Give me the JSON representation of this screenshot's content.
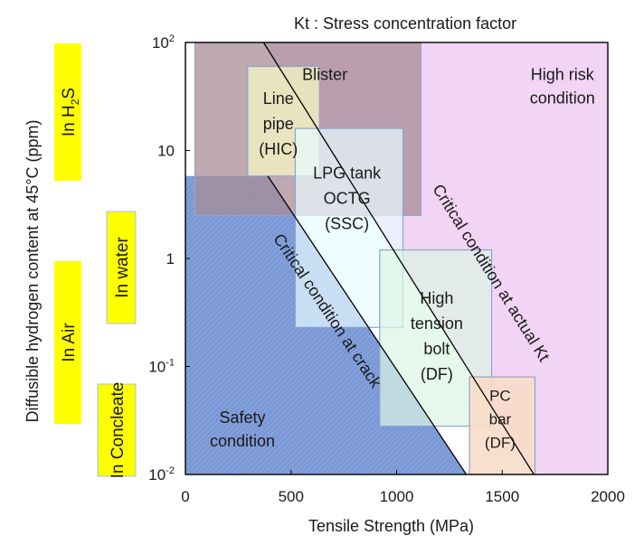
{
  "chart_data": {
    "type": "region-map",
    "title": "Kt : Stress concentration factor",
    "xlabel": "Tensile Strength (MPa)",
    "ylabel": "Diffusible hydrogen content at 45°C (ppm)",
    "xlim": [
      0,
      2000
    ],
    "ylim": [
      0.01,
      100
    ],
    "yscale": "log",
    "xticks": [
      {
        "value": 0,
        "label": "0"
      },
      {
        "value": 500,
        "label": "500"
      },
      {
        "value": 1000,
        "label": "1000"
      },
      {
        "value": 1500,
        "label": "1500"
      },
      {
        "value": 2000,
        "label": "2000"
      }
    ],
    "yticks": [
      {
        "value": 100,
        "base": "10",
        "exp": "2"
      },
      {
        "value": 10,
        "base": "10",
        "exp": ""
      },
      {
        "value": 1,
        "base": "1",
        "exp": ""
      },
      {
        "value": 0.1,
        "base": "10",
        "exp": "-1"
      },
      {
        "value": 0.01,
        "base": "10",
        "exp": "-2"
      }
    ],
    "regions": [
      {
        "name": "high-risk-region",
        "color": "#f2d4f4",
        "polygon": [
          [
            370,
            100
          ],
          [
            2000,
            100
          ],
          [
            2000,
            0.01
          ],
          [
            1650,
            0.01
          ]
        ]
      },
      {
        "name": "safety-region",
        "color": "#7a98d6",
        "polygon": [
          [
            0,
            5.8
          ],
          [
            390,
            5.8
          ],
          [
            1330,
            0.01
          ],
          [
            0,
            0.01
          ]
        ]
      }
    ],
    "lines": [
      {
        "name": "critical-line-actual-kt",
        "from": [
          370,
          100
        ],
        "to": [
          1650,
          0.01
        ]
      },
      {
        "name": "critical-line-crack",
        "from": [
          390,
          5.8
        ],
        "to": [
          1330,
          0.01
        ]
      }
    ],
    "boxes": [
      {
        "name": "blister-box",
        "label_key": "blister",
        "x": [
          45,
          1115
        ],
        "y": [
          2.5,
          100
        ],
        "fill": "#a88c96",
        "opacity": 0.75
      },
      {
        "name": "line-pipe-box",
        "label_key": "line_pipe",
        "x": [
          295,
          635
        ],
        "y": [
          5.8,
          60
        ],
        "fill": "#f7f7c4",
        "opacity": 0.75
      },
      {
        "name": "lpg-tank-box",
        "label_key": "lpg_tank",
        "x": [
          520,
          1030
        ],
        "y": [
          0.23,
          16
        ],
        "fill": "#e8fbff",
        "opacity": 0.7
      },
      {
        "name": "high-tension-bolt-box",
        "label_key": "high_tension_bolt",
        "x": [
          920,
          1450
        ],
        "y": [
          0.028,
          1.2
        ],
        "fill": "#dcf5e4",
        "opacity": 0.7
      },
      {
        "name": "pc-bar-box",
        "label_key": "pc_bar",
        "x": [
          1345,
          1655
        ],
        "y": [
          0.01,
          0.08
        ],
        "fill": "#f8dcc8",
        "opacity": 0.9
      }
    ],
    "annotations": {
      "blister": [
        "Blister"
      ],
      "high_risk": [
        "High risk",
        "condition"
      ],
      "line_pipe": [
        "Line",
        "pipe",
        "(HIC)"
      ],
      "lpg_tank": [
        "LPG tank",
        "OCTG",
        "(SSC)"
      ],
      "high_tension_bolt": [
        "High",
        "tension",
        "bolt",
        "(DF)"
      ],
      "pc_bar": [
        "PC",
        "bar",
        "(DF)"
      ],
      "safety": [
        "Safety",
        "condition"
      ],
      "critical_actual": "Critical condition at actual Kt",
      "critical_crack": "Critical condition at crack"
    },
    "environments": [
      {
        "name": "env-h2s",
        "label": "In H",
        "sub": "2",
        "label_end": "S"
      },
      {
        "name": "env-water",
        "label": "In water"
      },
      {
        "name": "env-air",
        "label": "In Air"
      },
      {
        "name": "env-concrete",
        "label": "In Concleate"
      }
    ],
    "colors": {
      "highlight_yellow": "#ffff00",
      "highlight_border": "#9fc2e4",
      "axis": "#000000"
    }
  }
}
